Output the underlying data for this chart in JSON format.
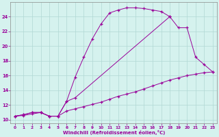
{
  "xlabel": "Windchill (Refroidissement éolien,°C)",
  "background_color": "#d5f2ee",
  "grid_color": "#b0d8d4",
  "line_color": "#990099",
  "xlim": [
    -0.5,
    23.5
  ],
  "ylim": [
    9.5,
    26.0
  ],
  "yticks": [
    10,
    12,
    14,
    16,
    18,
    20,
    22,
    24
  ],
  "xticks": [
    0,
    1,
    2,
    3,
    4,
    5,
    6,
    7,
    8,
    9,
    10,
    11,
    12,
    13,
    14,
    15,
    16,
    17,
    18,
    19,
    20,
    21,
    22,
    23
  ],
  "line1_x": [
    0,
    1,
    2,
    3,
    4,
    5,
    6,
    7,
    8,
    9,
    10,
    11,
    12,
    13,
    14,
    15,
    16,
    17,
    18
  ],
  "line1_y": [
    10.5,
    10.7,
    11.0,
    11.0,
    10.5,
    10.5,
    12.5,
    15.8,
    18.5,
    21.0,
    23.0,
    24.5,
    24.9,
    25.2,
    25.2,
    25.1,
    24.9,
    24.7,
    24.0
  ],
  "line2_x": [
    0,
    1,
    2,
    3,
    4,
    5,
    6,
    7,
    18,
    19,
    20,
    21,
    22,
    23
  ],
  "line2_y": [
    10.5,
    10.7,
    11.0,
    11.0,
    10.5,
    10.5,
    12.5,
    13.0,
    24.0,
    22.5,
    22.5,
    18.5,
    17.5,
    16.5
  ],
  "line3_x": [
    0,
    1,
    2,
    3,
    4,
    5,
    6,
    7,
    8,
    9,
    10,
    11,
    12,
    13,
    14,
    15,
    16,
    17,
    18,
    19,
    20,
    21,
    22,
    23
  ],
  "line3_y": [
    10.5,
    10.6,
    10.8,
    11.0,
    10.5,
    10.5,
    11.2,
    11.5,
    11.8,
    12.1,
    12.4,
    12.8,
    13.2,
    13.5,
    13.8,
    14.2,
    14.6,
    15.0,
    15.4,
    15.7,
    16.0,
    16.2,
    16.4,
    16.5
  ]
}
